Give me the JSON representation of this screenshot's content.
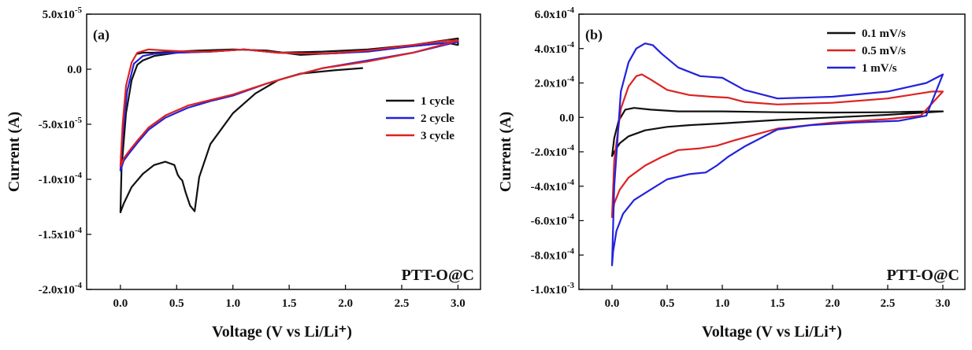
{
  "chart_data": [
    {
      "id": "a",
      "type": "line",
      "panel_tag": "(a)",
      "xlabel": "Voltage (V vs Li/Li⁺)",
      "ylabel": "Current (A)",
      "xlim": [
        -0.3,
        3.2
      ],
      "ylim": [
        -0.0002,
        5e-05
      ],
      "x_ticks": [
        {
          "value": 0.0,
          "label": "0.0"
        },
        {
          "value": 0.5,
          "label": "0.5"
        },
        {
          "value": 1.0,
          "label": "1.0"
        },
        {
          "value": 1.5,
          "label": "1.5"
        },
        {
          "value": 2.0,
          "label": "2.0"
        },
        {
          "value": 2.5,
          "label": "2.5"
        },
        {
          "value": 3.0,
          "label": "3.0"
        }
      ],
      "y_ticks": [
        {
          "value": 5e-05,
          "mant": "5.0x10",
          "exp": "-5"
        },
        {
          "value": 0,
          "mant": "0.0",
          "exp": ""
        },
        {
          "value": -5e-05,
          "mant": "-5.0x10",
          "exp": "-5"
        },
        {
          "value": -0.0001,
          "mant": "-1.0x10",
          "exp": "-4"
        },
        {
          "value": -0.00015,
          "mant": "-1.5x10",
          "exp": "-4"
        },
        {
          "value": -0.0002,
          "mant": "-2.0x10",
          "exp": "-4"
        }
      ],
      "legend_position": "right",
      "sample_label": "PTT-O@C",
      "series": [
        {
          "name": "1 cycle",
          "color": "#111111",
          "x": [
            2.15,
            1.9,
            1.6,
            1.4,
            1.2,
            1.0,
            0.8,
            0.7,
            0.66,
            0.62,
            0.58,
            0.55,
            0.53,
            0.51,
            0.48,
            0.4,
            0.3,
            0.2,
            0.1,
            0.03,
            0.0,
            0.01,
            0.05,
            0.1,
            0.15,
            0.2,
            0.3,
            0.5,
            0.8,
            1.1,
            1.4,
            1.8,
            2.2,
            2.6,
            2.8,
            3.0,
            3.0,
            2.9,
            2.6,
            2.3,
            2.0,
            1.6,
            1.3,
            1.0,
            0.7,
            0.5,
            0.3,
            0.2,
            0.15
          ],
          "y": [
            1e-06,
            -1e-06,
            -4e-06,
            -1e-05,
            -2.2e-05,
            -4e-05,
            -6.8e-05,
            -9.8e-05,
            -0.000129,
            -0.000124,
            -0.000112,
            -0.000101,
            -9.9e-05,
            -9.6e-05,
            -8.7e-05,
            -8.4e-05,
            -8.7e-05,
            -9.5e-05,
            -0.000107,
            -0.000122,
            -0.00013,
            -9e-05,
            -4e-05,
            -1e-05,
            4e-06,
            8e-06,
            1.2e-05,
            1.5e-05,
            1.6e-05,
            1.8e-05,
            1.5e-05,
            1.6e-05,
            1.8e-05,
            2.2e-05,
            2.5e-05,
            2.8e-05,
            2.2e-05,
            2.4e-05,
            2.1e-05,
            1.8e-05,
            1.5e-05,
            1.3e-05,
            1.7e-05,
            1.8e-05,
            1.7e-05,
            1.6e-05,
            1.5e-05,
            1.5e-05,
            1.4e-05
          ]
        },
        {
          "name": "2 cycle",
          "color": "#2222dd",
          "x": [
            3.0,
            2.6,
            2.2,
            1.8,
            1.5,
            1.3,
            1.0,
            0.8,
            0.6,
            0.4,
            0.25,
            0.15,
            0.08,
            0.03,
            0.01,
            0.0,
            0.02,
            0.06,
            0.12,
            0.2,
            0.3,
            0.5,
            0.8,
            1.1,
            1.4,
            1.8,
            2.2,
            2.6,
            2.9,
            3.0
          ],
          "y": [
            2.5e-05,
            1.5e-05,
            8e-06,
            1e-06,
            -7e-06,
            -1.3e-05,
            -2.4e-05,
            -2.9e-05,
            -3.5e-05,
            -4.4e-05,
            -5.5e-05,
            -6.7e-05,
            -7.6e-05,
            -8.3e-05,
            -8.9e-05,
            -9.2e-05,
            -6e-05,
            -2e-05,
            5e-06,
            1.2e-05,
            1.4e-05,
            1.5e-05,
            1.6e-05,
            1.8e-05,
            1.5e-05,
            1.4e-05,
            1.6e-05,
            2.1e-05,
            2.4e-05,
            2.5e-05
          ]
        },
        {
          "name": "3 cycle",
          "color": "#dd2222",
          "x": [
            3.0,
            2.6,
            2.2,
            1.8,
            1.5,
            1.3,
            1.0,
            0.8,
            0.6,
            0.4,
            0.25,
            0.15,
            0.08,
            0.03,
            0.01,
            0.0,
            0.02,
            0.05,
            0.1,
            0.15,
            0.25,
            0.4,
            0.6,
            0.8,
            1.1,
            1.4,
            1.8,
            2.2,
            2.6,
            2.9,
            3.0
          ],
          "y": [
            2.6e-05,
            1.5e-05,
            7e-06,
            1e-06,
            -7e-06,
            -1.3e-05,
            -2.3e-05,
            -2.8e-05,
            -3.3e-05,
            -4.2e-05,
            -5.3e-05,
            -6.5e-05,
            -7.4e-05,
            -8.1e-05,
            -8.6e-05,
            -8.8e-05,
            -5e-05,
            -1.5e-05,
            6e-06,
            1.5e-05,
            1.8e-05,
            1.7e-05,
            1.6e-05,
            1.6e-05,
            1.8e-05,
            1.5e-05,
            1.4e-05,
            1.7e-05,
            2.2e-05,
            2.6e-05,
            2.6e-05
          ]
        }
      ]
    },
    {
      "id": "b",
      "type": "line",
      "panel_tag": "(b)",
      "xlabel": "Voltage (V vs Li/Li⁺)",
      "ylabel": "Current (A)",
      "xlim": [
        -0.3,
        3.2
      ],
      "ylim": [
        -0.001,
        0.0006
      ],
      "x_ticks": [
        {
          "value": 0.0,
          "label": "0.0"
        },
        {
          "value": 0.5,
          "label": "0.5"
        },
        {
          "value": 1.0,
          "label": "1.0"
        },
        {
          "value": 1.5,
          "label": "1.5"
        },
        {
          "value": 2.0,
          "label": "2.0"
        },
        {
          "value": 2.5,
          "label": "2.5"
        },
        {
          "value": 3.0,
          "label": "3.0"
        }
      ],
      "y_ticks": [
        {
          "value": 0.0006,
          "mant": "6.0x10",
          "exp": "-4"
        },
        {
          "value": 0.0004,
          "mant": "4.0x10",
          "exp": "-4"
        },
        {
          "value": 0.0002,
          "mant": "2.0x10",
          "exp": "-4"
        },
        {
          "value": 0,
          "mant": "0.0",
          "exp": ""
        },
        {
          "value": -0.0002,
          "mant": "-2.0x10",
          "exp": "-4"
        },
        {
          "value": -0.0004,
          "mant": "-4.0x10",
          "exp": "-4"
        },
        {
          "value": -0.0006,
          "mant": "-6.0x10",
          "exp": "-4"
        },
        {
          "value": -0.0008,
          "mant": "-8.0x10",
          "exp": "-4"
        },
        {
          "value": -0.001,
          "mant": "-1.0x10",
          "exp": "-3"
        }
      ],
      "legend_position": "top-right",
      "sample_label": "PTT-O@C",
      "series": [
        {
          "name": "0.1 mV/s",
          "color": "#111111",
          "x": [
            3.0,
            2.5,
            2.0,
            1.5,
            1.0,
            0.7,
            0.5,
            0.3,
            0.15,
            0.07,
            0.02,
            0.0,
            0.02,
            0.06,
            0.12,
            0.2,
            0.35,
            0.6,
            1.0,
            1.5,
            2.0,
            2.5,
            2.9,
            3.0
          ],
          "y": [
            3.5e-05,
            1.5e-05,
            0.0,
            -1.5e-05,
            -3.5e-05,
            -4.5e-05,
            -5.5e-05,
            -7.5e-05,
            -0.00011,
            -0.00015,
            -0.0002,
            -0.000225,
            -0.00012,
            -2e-05,
            4.5e-05,
            5.5e-05,
            4.5e-05,
            3.5e-05,
            3.5e-05,
            3e-05,
            2.8e-05,
            3e-05,
            3.5e-05,
            3.5e-05
          ]
        },
        {
          "name": "0.5 mV/s",
          "color": "#dd2222",
          "x": [
            3.0,
            2.8,
            2.5,
            2.0,
            1.5,
            1.3,
            1.1,
            0.95,
            0.8,
            0.6,
            0.45,
            0.3,
            0.15,
            0.07,
            0.02,
            0.0,
            0.02,
            0.08,
            0.15,
            0.22,
            0.27,
            0.35,
            0.5,
            0.7,
            0.9,
            1.05,
            1.2,
            1.5,
            2.0,
            2.5,
            2.9,
            3.0
          ],
          "y": [
            0.00015,
            1e-05,
            -1e-05,
            -3e-05,
            -6.5e-05,
            -0.0001,
            -0.000135,
            -0.000165,
            -0.00018,
            -0.00019,
            -0.00023,
            -0.00028,
            -0.00035,
            -0.00042,
            -0.0005,
            -0.00058,
            -0.00025,
            5e-05,
            0.00018,
            0.00024,
            0.00025,
            0.00022,
            0.00016,
            0.00013,
            0.00012,
            0.000115,
            9e-05,
            7.5e-05,
            8.5e-05,
            0.00011,
            0.00015,
            0.00015
          ]
        },
        {
          "name": "1 mV/s",
          "color": "#2222dd",
          "x": [
            3.0,
            2.85,
            2.6,
            2.2,
            1.8,
            1.5,
            1.35,
            1.2,
            1.05,
            0.95,
            0.85,
            0.7,
            0.5,
            0.35,
            0.2,
            0.1,
            0.04,
            0.01,
            0.0,
            0.02,
            0.08,
            0.15,
            0.22,
            0.3,
            0.37,
            0.45,
            0.6,
            0.8,
            1.0,
            1.2,
            1.5,
            2.0,
            2.5,
            2.85,
            3.0
          ],
          "y": [
            0.00025,
            1e-05,
            -2e-05,
            -3e-05,
            -4.5e-05,
            -7e-05,
            -0.00012,
            -0.00017,
            -0.00023,
            -0.00028,
            -0.00032,
            -0.00033,
            -0.00036,
            -0.00042,
            -0.00048,
            -0.00056,
            -0.00066,
            -0.00078,
            -0.00086,
            -0.0004,
            0.00015,
            0.00032,
            0.0004,
            0.00043,
            0.00042,
            0.00037,
            0.00029,
            0.00024,
            0.00023,
            0.00016,
            0.00011,
            0.00012,
            0.00015,
            0.0002,
            0.00025
          ]
        }
      ]
    }
  ]
}
